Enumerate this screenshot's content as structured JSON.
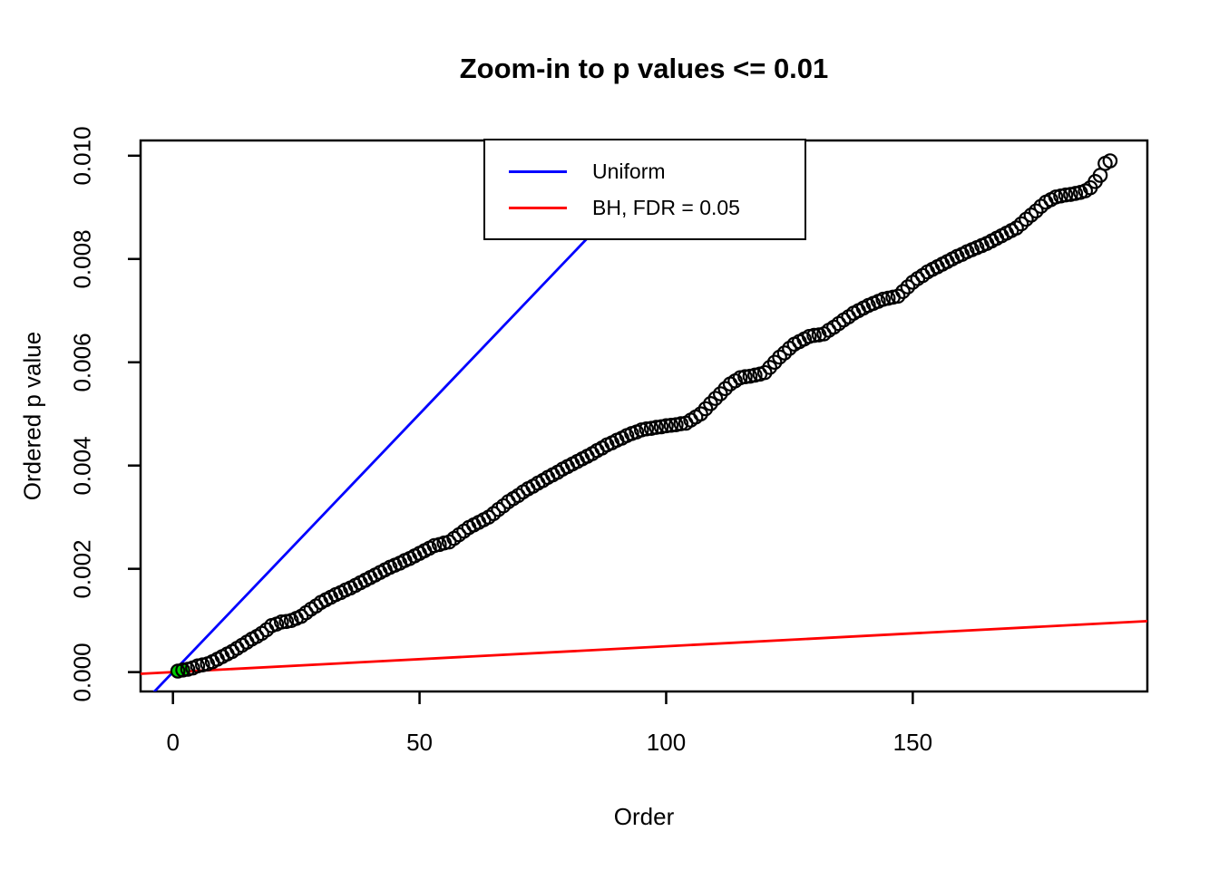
{
  "chart_data": {
    "type": "scatter",
    "title": "Zoom-in to p values <= 0.01",
    "xlabel": "Order",
    "ylabel": "Ordered p value",
    "x_range": [
      -6.56,
      197.56
    ],
    "y_range": [
      -0.000375,
      0.010295
    ],
    "x_ticks": [
      0,
      50,
      100,
      150
    ],
    "x_tick_labels": [
      "0",
      "50",
      "100",
      "150"
    ],
    "y_ticks": [
      0.0,
      0.002,
      0.004,
      0.006,
      0.008,
      0.01
    ],
    "y_tick_labels": [
      "0.000",
      "0.002",
      "0.004",
      "0.006",
      "0.008",
      "0.010"
    ],
    "grid": false,
    "point_style": {
      "shape": "open-circle",
      "color": "#000000"
    },
    "points": {
      "note": "ordered p values, order = 1..190",
      "p_values": [
        2e-05,
        4e-05,
        5.5e-05,
        8e-05,
        0.00012,
        0.00014,
        0.00016,
        0.0002,
        0.00025,
        0.0003,
        0.00035,
        0.0004,
        0.00046,
        0.00052,
        0.00058,
        0.00064,
        0.00069,
        0.00075,
        0.00082,
        0.0009,
        0.00093,
        0.00097,
        0.00098,
        0.001,
        0.00104,
        0.00108,
        0.00115,
        0.00122,
        0.00128,
        0.00135,
        0.0014,
        0.00145,
        0.0015,
        0.00154,
        0.00159,
        0.00163,
        0.00168,
        0.00173,
        0.00178,
        0.00183,
        0.00188,
        0.00193,
        0.00198,
        0.00203,
        0.00207,
        0.00211,
        0.00216,
        0.0022,
        0.00225,
        0.0023,
        0.00235,
        0.0024,
        0.00245,
        0.00247,
        0.0025,
        0.00252,
        0.00259,
        0.00266,
        0.00273,
        0.0028,
        0.00285,
        0.0029,
        0.00295,
        0.003,
        0.00307,
        0.00315,
        0.00322,
        0.0033,
        0.00336,
        0.00342,
        0.00349,
        0.00355,
        0.0036,
        0.00366,
        0.00371,
        0.00377,
        0.00382,
        0.00387,
        0.00393,
        0.00398,
        0.00403,
        0.00408,
        0.00413,
        0.00418,
        0.00423,
        0.00429,
        0.00434,
        0.0044,
        0.00444,
        0.00449,
        0.00453,
        0.00458,
        0.00462,
        0.00465,
        0.00469,
        0.00471,
        0.00472,
        0.00474,
        0.00475,
        0.00477,
        0.00478,
        0.00479,
        0.00481,
        0.00482,
        0.00488,
        0.00494,
        0.005,
        0.0051,
        0.0052,
        0.0053,
        0.00539,
        0.00549,
        0.00558,
        0.00564,
        0.0057,
        0.00572,
        0.00573,
        0.00575,
        0.00577,
        0.0058,
        0.0059,
        0.006,
        0.0061,
        0.00618,
        0.00627,
        0.00635,
        0.0064,
        0.00645,
        0.0065,
        0.00652,
        0.00653,
        0.00655,
        0.00662,
        0.00668,
        0.00675,
        0.00682,
        0.00688,
        0.00695,
        0.007,
        0.00705,
        0.0071,
        0.00714,
        0.00718,
        0.00722,
        0.00724,
        0.00726,
        0.00728,
        0.00737,
        0.00746,
        0.00755,
        0.00762,
        0.00768,
        0.00775,
        0.0078,
        0.00785,
        0.0079,
        0.00795,
        0.008,
        0.00805,
        0.00809,
        0.00814,
        0.00818,
        0.00822,
        0.00826,
        0.0083,
        0.00835,
        0.0084,
        0.00845,
        0.0085,
        0.00855,
        0.0086,
        0.00868,
        0.00877,
        0.00885,
        0.00893,
        0.00902,
        0.0091,
        0.00915,
        0.0092,
        0.00922,
        0.00924,
        0.00925,
        0.00927,
        0.00929,
        0.00932,
        0.00938,
        0.0095,
        0.00962,
        0.00985,
        0.0099
      ]
    },
    "green_points": [
      {
        "order": 1,
        "p": 2e-05
      },
      {
        "order": 2,
        "p": 4e-05
      }
    ],
    "green_color": "#00CD00",
    "lines": [
      {
        "name": "uniform",
        "label": "Uniform",
        "color": "#0000FF",
        "intercept": 0,
        "slope": 0.0001
      },
      {
        "name": "bh",
        "label": "BH, FDR = 0.05",
        "color": "#FF0000",
        "intercept": 0,
        "slope": 5e-06
      }
    ],
    "legend": {
      "position": "top-center",
      "entries": [
        {
          "label": "Uniform",
          "color": "#0000FF"
        },
        {
          "label": "BH, FDR = 0.05",
          "color": "#FF0000"
        }
      ]
    }
  }
}
